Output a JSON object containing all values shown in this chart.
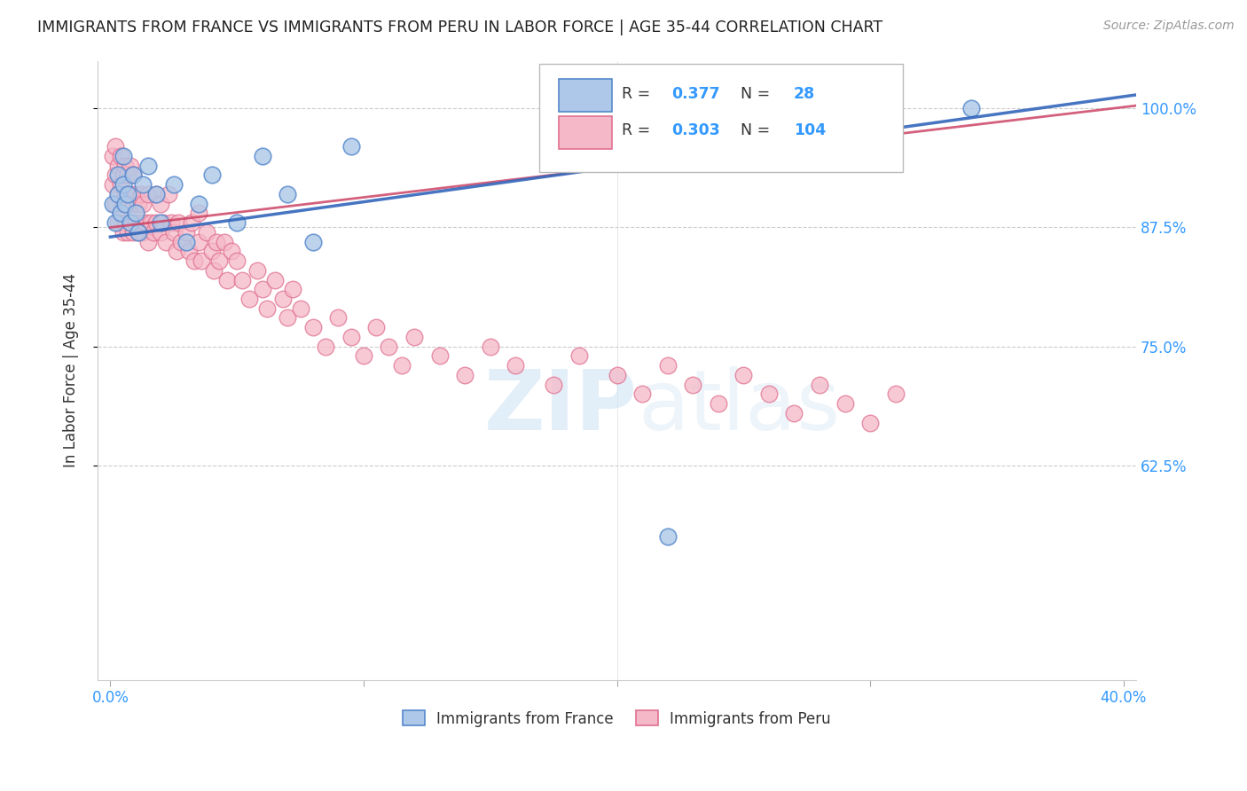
{
  "title": "IMMIGRANTS FROM FRANCE VS IMMIGRANTS FROM PERU IN LABOR FORCE | AGE 35-44 CORRELATION CHART",
  "source": "Source: ZipAtlas.com",
  "ylabel": "In Labor Force | Age 35-44",
  "xlim": [
    -0.005,
    0.405
  ],
  "ylim": [
    0.4,
    1.05
  ],
  "yticks": [
    0.625,
    0.75,
    0.875,
    1.0
  ],
  "ytick_labels": [
    "62.5%",
    "75.0%",
    "87.5%",
    "100.0%"
  ],
  "xtick_left": "0.0%",
  "xtick_right": "40.0%",
  "france_color": "#adc8e8",
  "peru_color": "#f5b8c8",
  "france_edge": "#5588cc",
  "peru_edge": "#e07090",
  "france_R": 0.377,
  "france_N": 28,
  "peru_R": 0.303,
  "peru_N": 104,
  "france_line_color": "#3366bb",
  "peru_line_color": "#cc4466",
  "watermark_zip": "ZIP",
  "watermark_atlas": "atlas",
  "legend_label_france": "Immigrants from France",
  "legend_label_peru": "Immigrants from Peru",
  "france_x": [
    0.001,
    0.002,
    0.003,
    0.003,
    0.004,
    0.005,
    0.005,
    0.006,
    0.007,
    0.008,
    0.009,
    0.01,
    0.011,
    0.013,
    0.015,
    0.018,
    0.02,
    0.025,
    0.03,
    0.035,
    0.04,
    0.05,
    0.06,
    0.07,
    0.08,
    0.095,
    0.22,
    0.34
  ],
  "france_y": [
    0.9,
    0.88,
    0.93,
    0.91,
    0.89,
    0.92,
    0.95,
    0.9,
    0.91,
    0.88,
    0.93,
    0.89,
    0.87,
    0.92,
    0.94,
    0.91,
    0.88,
    0.92,
    0.86,
    0.9,
    0.93,
    0.88,
    0.95,
    0.91,
    0.86,
    0.96,
    0.55,
    1.0
  ],
  "peru_x": [
    0.001,
    0.001,
    0.002,
    0.002,
    0.002,
    0.003,
    0.003,
    0.003,
    0.004,
    0.004,
    0.004,
    0.005,
    0.005,
    0.005,
    0.006,
    0.006,
    0.006,
    0.007,
    0.007,
    0.007,
    0.008,
    0.008,
    0.008,
    0.009,
    0.009,
    0.009,
    0.01,
    0.01,
    0.011,
    0.011,
    0.012,
    0.012,
    0.013,
    0.013,
    0.014,
    0.015,
    0.015,
    0.016,
    0.017,
    0.018,
    0.018,
    0.02,
    0.02,
    0.021,
    0.022,
    0.023,
    0.024,
    0.025,
    0.026,
    0.027,
    0.028,
    0.03,
    0.031,
    0.032,
    0.033,
    0.035,
    0.035,
    0.036,
    0.038,
    0.04,
    0.041,
    0.042,
    0.043,
    0.045,
    0.046,
    0.048,
    0.05,
    0.052,
    0.055,
    0.058,
    0.06,
    0.062,
    0.065,
    0.068,
    0.07,
    0.072,
    0.075,
    0.08,
    0.085,
    0.09,
    0.095,
    0.1,
    0.105,
    0.11,
    0.115,
    0.12,
    0.13,
    0.14,
    0.15,
    0.16,
    0.175,
    0.185,
    0.2,
    0.21,
    0.22,
    0.23,
    0.24,
    0.25,
    0.26,
    0.27,
    0.28,
    0.29,
    0.3,
    0.31
  ],
  "peru_y": [
    0.92,
    0.95,
    0.9,
    0.93,
    0.96,
    0.88,
    0.91,
    0.94,
    0.89,
    0.92,
    0.95,
    0.87,
    0.9,
    0.93,
    0.88,
    0.91,
    0.94,
    0.87,
    0.9,
    0.93,
    0.88,
    0.91,
    0.94,
    0.87,
    0.9,
    0.93,
    0.88,
    0.91,
    0.87,
    0.9,
    0.88,
    0.91,
    0.87,
    0.9,
    0.88,
    0.86,
    0.91,
    0.88,
    0.87,
    0.91,
    0.88,
    0.87,
    0.9,
    0.88,
    0.86,
    0.91,
    0.88,
    0.87,
    0.85,
    0.88,
    0.86,
    0.87,
    0.85,
    0.88,
    0.84,
    0.86,
    0.89,
    0.84,
    0.87,
    0.85,
    0.83,
    0.86,
    0.84,
    0.86,
    0.82,
    0.85,
    0.84,
    0.82,
    0.8,
    0.83,
    0.81,
    0.79,
    0.82,
    0.8,
    0.78,
    0.81,
    0.79,
    0.77,
    0.75,
    0.78,
    0.76,
    0.74,
    0.77,
    0.75,
    0.73,
    0.76,
    0.74,
    0.72,
    0.75,
    0.73,
    0.71,
    0.74,
    0.72,
    0.7,
    0.73,
    0.71,
    0.69,
    0.72,
    0.7,
    0.68,
    0.71,
    0.69,
    0.67,
    0.7
  ]
}
